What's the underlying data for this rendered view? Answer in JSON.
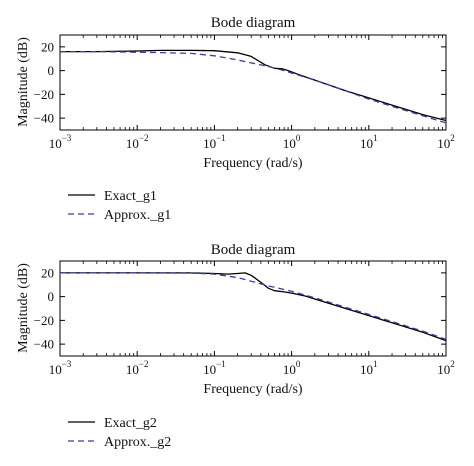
{
  "chart_data": [
    {
      "type": "line",
      "title": "Bode diagram",
      "xlabel": "Frequency (rad/s)",
      "ylabel": "Magnitude (dB)",
      "xscale": "log",
      "xlim": [
        0.001,
        100
      ],
      "ylim": [
        -50,
        30
      ],
      "x_ticks": [
        "10^-3",
        "10^-2",
        "10^-1",
        "10^0",
        "10^1",
        "10^2"
      ],
      "y_ticks": [
        20,
        0,
        -20,
        -40
      ],
      "legend_placement": "below",
      "series": [
        {
          "name": "Exact_g1",
          "style": "solid",
          "color": "#000000",
          "x": [
            0.001,
            0.003,
            0.01,
            0.02,
            0.05,
            0.1,
            0.2,
            0.3,
            0.45,
            0.6,
            0.75,
            0.9,
            1.2,
            2,
            5,
            10,
            20,
            50,
            100
          ],
          "y": [
            16,
            16,
            16.5,
            17,
            17,
            16.8,
            15,
            12,
            5,
            2,
            1.5,
            0,
            -3,
            -8,
            -17,
            -23,
            -29,
            -37,
            -42
          ]
        },
        {
          "name": "Approx._g1",
          "style": "dashed",
          "color": "#3b3f9e",
          "x": [
            0.001,
            0.003,
            0.01,
            0.02,
            0.05,
            0.1,
            0.2,
            0.3,
            0.5,
            0.7,
            1,
            2,
            5,
            10,
            20,
            50,
            100
          ],
          "y": [
            16,
            16,
            15.5,
            15.2,
            14.5,
            12.5,
            9,
            6.5,
            3.5,
            1,
            -2,
            -8,
            -17,
            -24,
            -30,
            -38,
            -44
          ]
        }
      ]
    },
    {
      "type": "line",
      "title": "Bode diagram",
      "xlabel": "Frequency (rad/s)",
      "ylabel": "Magnitude (dB)",
      "xscale": "log",
      "xlim": [
        0.001,
        100
      ],
      "ylim": [
        -50,
        30
      ],
      "x_ticks": [
        "10^-3",
        "10^-2",
        "10^-1",
        "10^0",
        "10^1",
        "10^2"
      ],
      "y_ticks": [
        20,
        0,
        -20,
        -40
      ],
      "legend_placement": "below",
      "series": [
        {
          "name": "Exact_g2",
          "style": "solid",
          "color": "#000000",
          "x": [
            0.001,
            0.01,
            0.05,
            0.1,
            0.15,
            0.2,
            0.25,
            0.3,
            0.4,
            0.5,
            0.6,
            0.8,
            1,
            1.5,
            2,
            5,
            10,
            20,
            50,
            100
          ],
          "y": [
            20,
            20,
            20,
            19.5,
            19,
            19.5,
            20,
            18,
            12,
            7,
            5,
            4,
            3,
            0.5,
            -2,
            -10,
            -16,
            -22,
            -30,
            -37
          ]
        },
        {
          "name": "Approx._g2",
          "style": "dashed",
          "color": "#3b3f9e",
          "x": [
            0.001,
            0.01,
            0.05,
            0.1,
            0.2,
            0.3,
            0.5,
            0.8,
            1,
            2,
            5,
            10,
            20,
            50,
            100
          ],
          "y": [
            20,
            20,
            19.8,
            19,
            16,
            13,
            9,
            6,
            4.5,
            -1,
            -9,
            -15,
            -21,
            -29,
            -36
          ]
        }
      ]
    }
  ]
}
